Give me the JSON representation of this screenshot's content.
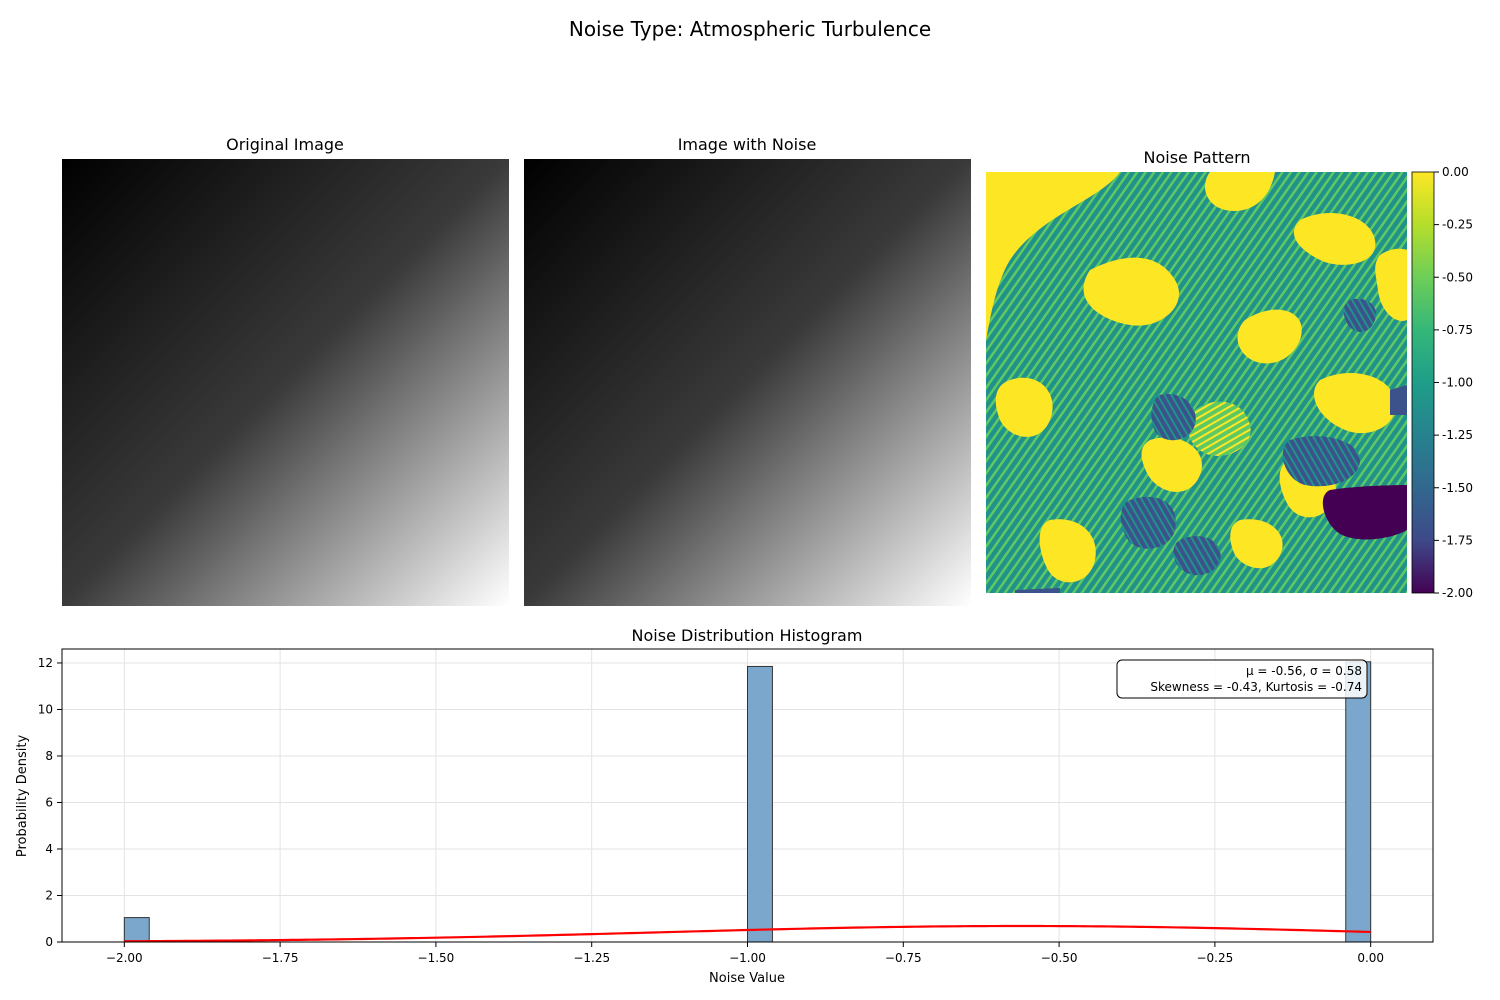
{
  "figure": {
    "suptitle": "Noise Type: Atmospheric Turbulence"
  },
  "panels": {
    "original": {
      "title": "Original Image"
    },
    "noisy": {
      "title": "Image with Noise"
    },
    "pattern": {
      "title": "Noise Pattern",
      "colorbar": {
        "colormap": "viridis",
        "range": [
          -2.0,
          0.0
        ],
        "ticks": [
          "0.00",
          "-0.25",
          "-0.50",
          "-0.75",
          "-1.00",
          "-1.25",
          "-1.50",
          "-1.75",
          "-2.00"
        ],
        "tick_values": [
          0.0,
          -0.25,
          -0.5,
          -0.75,
          -1.0,
          -1.25,
          -1.5,
          -1.75,
          -2.0
        ]
      }
    }
  },
  "chart_data": {
    "type": "bar",
    "title": "Noise Distribution Histogram",
    "xlabel": "Noise Value",
    "ylabel": "Probability Density",
    "xlim": [
      -2.1,
      0.1
    ],
    "ylim": [
      0,
      12.6
    ],
    "grid": true,
    "x_ticks": [
      -2.0,
      -1.75,
      -1.5,
      -1.25,
      -1.0,
      -0.75,
      -0.5,
      -0.25,
      0.0
    ],
    "x_tick_labels": [
      "−2.00",
      "−1.75",
      "−1.50",
      "−1.25",
      "−1.00",
      "−0.75",
      "−0.50",
      "−0.25",
      "0.00"
    ],
    "y_ticks": [
      0,
      2,
      4,
      6,
      8,
      10,
      12
    ],
    "y_tick_labels": [
      "0",
      "2",
      "4",
      "6",
      "8",
      "10",
      "12"
    ],
    "bars": [
      {
        "x0": -2.0,
        "x1": -1.96,
        "value": 1.05
      },
      {
        "x0": -1.0,
        "x1": -0.96,
        "value": 11.85
      },
      {
        "x0": -0.04,
        "x1": 0.0,
        "value": 12.05
      }
    ],
    "bar_color": "#7ba7cc",
    "fit_curve": {
      "type": "normal",
      "mean": -0.56,
      "std": 0.58,
      "color": "#ff0000"
    },
    "annotation": {
      "line1": "μ = -0.56, σ = 0.58",
      "line2": "Skewness = -0.43, Kurtosis = -0.74",
      "position": "top-right"
    }
  }
}
